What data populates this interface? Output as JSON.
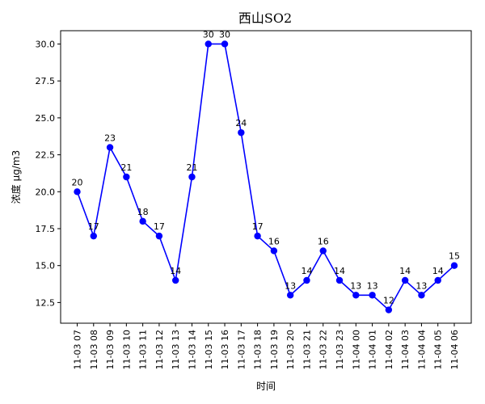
{
  "chart_data": {
    "type": "line",
    "title": "西山SO2",
    "xlabel": "时间",
    "ylabel": "浓度 μg/m3",
    "categories": [
      "11-03 07",
      "11-03 08",
      "11-03 09",
      "11-03 10",
      "11-03 11",
      "11-03 12",
      "11-03 13",
      "11-03 14",
      "11-03 15",
      "11-03 16",
      "11-03 17",
      "11-03 18",
      "11-03 19",
      "11-03 20",
      "11-03 21",
      "11-03 22",
      "11-03 23",
      "11-04 00",
      "11-04 01",
      "11-04 02",
      "11-04 03",
      "11-04 04",
      "11-04 05",
      "11-04 06"
    ],
    "series": [
      {
        "values": [
          20,
          17,
          23,
          21,
          18,
          17,
          14,
          21,
          30,
          30,
          24,
          17,
          16,
          13,
          14,
          16,
          14,
          13,
          13,
          12,
          14,
          13,
          14,
          15
        ],
        "color": "#0000ff",
        "marker": "circle"
      }
    ],
    "yticks": [
      12.5,
      15.0,
      17.5,
      20.0,
      22.5,
      25.0,
      27.5,
      30.0
    ],
    "ytick_labels": [
      "12.5",
      "15.0",
      "17.5",
      "20.0",
      "22.5",
      "25.0",
      "27.5",
      "30.0"
    ],
    "ylim": [
      11.1,
      30.9
    ],
    "grid": false,
    "data_labels": true
  }
}
